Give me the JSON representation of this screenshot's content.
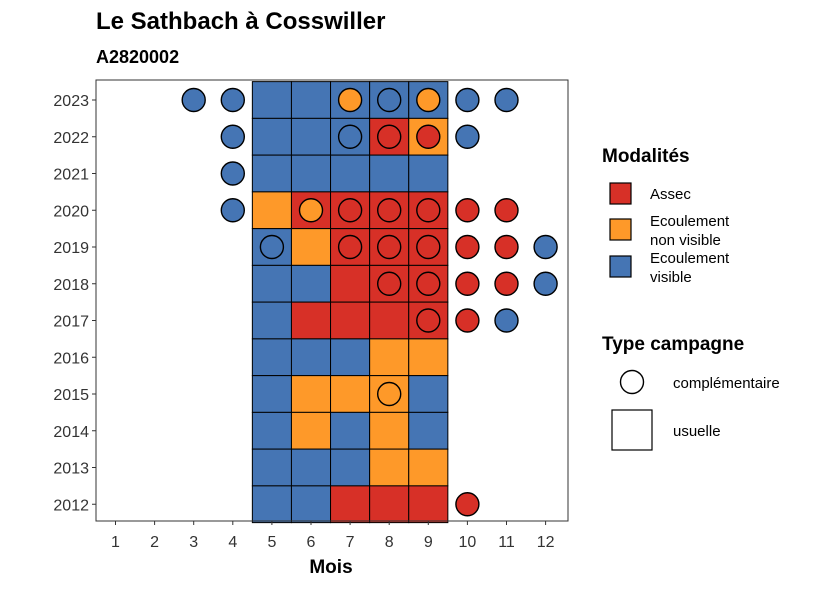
{
  "chart_data": {
    "type": "heatmap",
    "title": "Le Sathbach à Cosswiller",
    "subtitle": "A2820002",
    "xlabel": "Mois",
    "ylabel": "",
    "x_ticks": [
      1,
      2,
      3,
      4,
      5,
      6,
      7,
      8,
      9,
      10,
      11,
      12
    ],
    "y_ticks": [
      2012,
      2013,
      2014,
      2015,
      2016,
      2017,
      2018,
      2019,
      2020,
      2021,
      2022,
      2023
    ],
    "colors": {
      "assec": "#d73027",
      "ecoulement_non_visible": "#fe9929",
      "ecoulement_visible": "#4575b4"
    },
    "legend_modalites": {
      "title": "Modalités",
      "items": [
        {
          "key": "assec",
          "label_lines": [
            "Assec"
          ]
        },
        {
          "key": "ecoulement_non_visible",
          "label_lines": [
            "Ecoulement",
            "non visible"
          ]
        },
        {
          "key": "ecoulement_visible",
          "label_lines": [
            "Ecoulement",
            "visible"
          ]
        }
      ]
    },
    "legend_type": {
      "title": "Type campagne",
      "items": [
        {
          "shape": "circle",
          "label": "complémentaire"
        },
        {
          "shape": "square",
          "label": "usuelle"
        }
      ]
    },
    "usuelle": [
      {
        "year": 2023,
        "months": [
          "ecoulement_visible",
          "ecoulement_visible",
          "ecoulement_visible",
          "ecoulement_visible",
          "ecoulement_visible"
        ]
      },
      {
        "year": 2022,
        "months": [
          "ecoulement_visible",
          "ecoulement_visible",
          "ecoulement_visible",
          "assec",
          "ecoulement_non_visible"
        ]
      },
      {
        "year": 2021,
        "months": [
          "ecoulement_visible",
          "ecoulement_visible",
          "ecoulement_visible",
          "ecoulement_visible",
          "ecoulement_visible"
        ]
      },
      {
        "year": 2020,
        "months": [
          "ecoulement_non_visible",
          "assec",
          "assec",
          "assec",
          "assec"
        ]
      },
      {
        "year": 2019,
        "months": [
          "ecoulement_visible",
          "ecoulement_non_visible",
          "assec",
          "assec",
          "assec"
        ]
      },
      {
        "year": 2018,
        "months": [
          "ecoulement_visible",
          "ecoulement_visible",
          "assec",
          "assec",
          "assec"
        ]
      },
      {
        "year": 2017,
        "months": [
          "ecoulement_visible",
          "assec",
          "assec",
          "assec",
          "assec"
        ]
      },
      {
        "year": 2016,
        "months": [
          "ecoulement_visible",
          "ecoulement_visible",
          "ecoulement_visible",
          "ecoulement_non_visible",
          "ecoulement_non_visible"
        ]
      },
      {
        "year": 2015,
        "months": [
          "ecoulement_visible",
          "ecoulement_non_visible",
          "ecoulement_non_visible",
          "ecoulement_non_visible",
          "ecoulement_visible"
        ]
      },
      {
        "year": 2014,
        "months": [
          "ecoulement_visible",
          "ecoulement_non_visible",
          "ecoulement_visible",
          "ecoulement_non_visible",
          "ecoulement_visible"
        ]
      },
      {
        "year": 2013,
        "months": [
          "ecoulement_visible",
          "ecoulement_visible",
          "ecoulement_visible",
          "ecoulement_non_visible",
          "ecoulement_non_visible"
        ]
      },
      {
        "year": 2012,
        "months": [
          "ecoulement_visible",
          "ecoulement_visible",
          "assec",
          "assec",
          "assec"
        ]
      }
    ],
    "usuelle_months": [
      5,
      6,
      7,
      8,
      9
    ],
    "complementaire": [
      {
        "year": 2023,
        "month": 3,
        "value": "ecoulement_visible"
      },
      {
        "year": 2023,
        "month": 4,
        "value": "ecoulement_visible"
      },
      {
        "year": 2023,
        "month": 7,
        "value": "ecoulement_non_visible"
      },
      {
        "year": 2023,
        "month": 8,
        "value": "ecoulement_visible"
      },
      {
        "year": 2023,
        "month": 9,
        "value": "ecoulement_non_visible"
      },
      {
        "year": 2023,
        "month": 10,
        "value": "ecoulement_visible"
      },
      {
        "year": 2023,
        "month": 11,
        "value": "ecoulement_visible"
      },
      {
        "year": 2022,
        "month": 4,
        "value": "ecoulement_visible"
      },
      {
        "year": 2022,
        "month": 7,
        "value": "ecoulement_visible"
      },
      {
        "year": 2022,
        "month": 8,
        "value": "assec"
      },
      {
        "year": 2022,
        "month": 9,
        "value": "assec"
      },
      {
        "year": 2022,
        "month": 10,
        "value": "ecoulement_visible"
      },
      {
        "year": 2021,
        "month": 4,
        "value": "ecoulement_visible"
      },
      {
        "year": 2020,
        "month": 4,
        "value": "ecoulement_visible"
      },
      {
        "year": 2020,
        "month": 6,
        "value": "ecoulement_non_visible"
      },
      {
        "year": 2020,
        "month": 7,
        "value": "assec"
      },
      {
        "year": 2020,
        "month": 8,
        "value": "assec"
      },
      {
        "year": 2020,
        "month": 9,
        "value": "assec"
      },
      {
        "year": 2020,
        "month": 10,
        "value": "assec"
      },
      {
        "year": 2020,
        "month": 11,
        "value": "assec"
      },
      {
        "year": 2019,
        "month": 5,
        "value": "ecoulement_visible"
      },
      {
        "year": 2019,
        "month": 7,
        "value": "assec"
      },
      {
        "year": 2019,
        "month": 8,
        "value": "assec"
      },
      {
        "year": 2019,
        "month": 9,
        "value": "assec"
      },
      {
        "year": 2019,
        "month": 10,
        "value": "assec"
      },
      {
        "year": 2019,
        "month": 11,
        "value": "assec"
      },
      {
        "year": 2019,
        "month": 12,
        "value": "ecoulement_visible"
      },
      {
        "year": 2018,
        "month": 8,
        "value": "assec"
      },
      {
        "year": 2018,
        "month": 9,
        "value": "assec"
      },
      {
        "year": 2018,
        "month": 10,
        "value": "assec"
      },
      {
        "year": 2018,
        "month": 11,
        "value": "assec"
      },
      {
        "year": 2018,
        "month": 12,
        "value": "ecoulement_visible"
      },
      {
        "year": 2017,
        "month": 9,
        "value": "assec"
      },
      {
        "year": 2017,
        "month": 10,
        "value": "assec"
      },
      {
        "year": 2017,
        "month": 11,
        "value": "ecoulement_visible"
      },
      {
        "year": 2015,
        "month": 8,
        "value": "ecoulement_non_visible"
      },
      {
        "year": 2012,
        "month": 10,
        "value": "assec"
      }
    ]
  }
}
